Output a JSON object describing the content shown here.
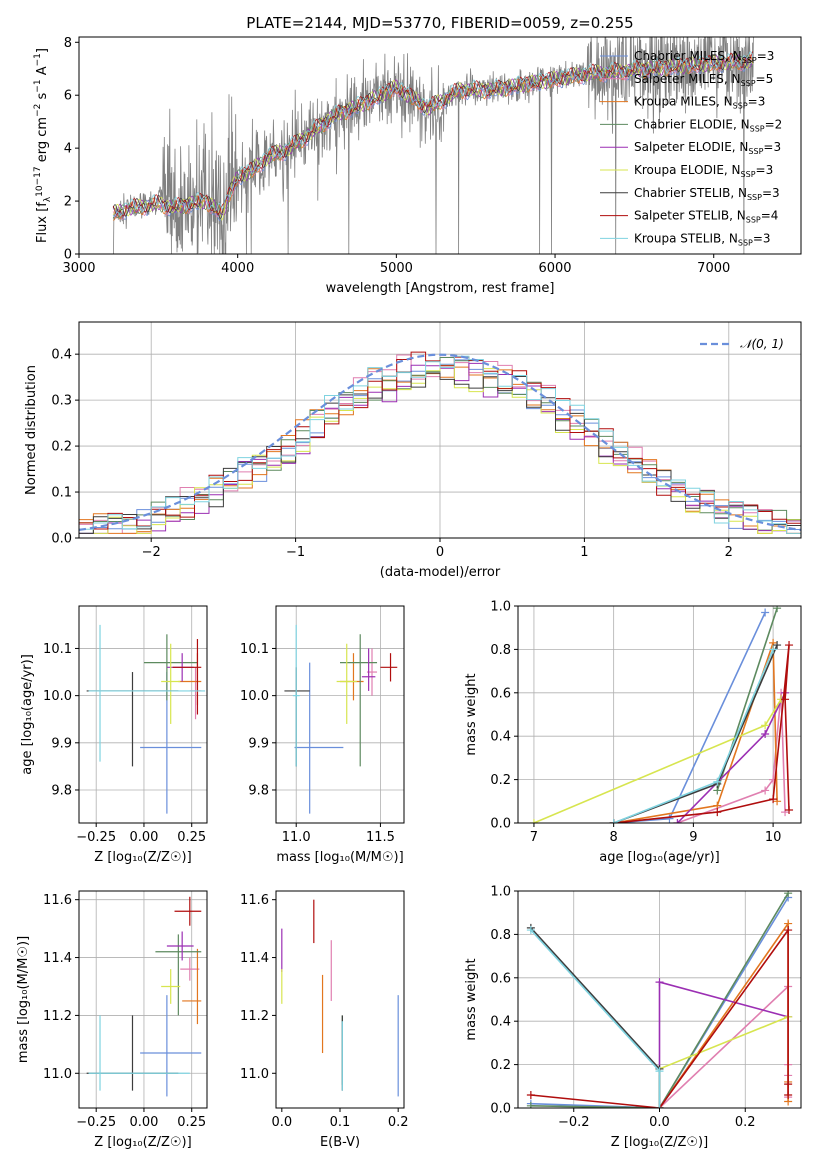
{
  "figure": {
    "title": "PLATE=2144, MJD=53770, FIBERID=0059, z=0.255"
  },
  "colors": {
    "obs": "#808080",
    "models": [
      "#6a8fdb",
      "#e07fb0",
      "#e2761f",
      "#5d8a5f",
      "#9b2fb3",
      "#d7e54f",
      "#3d3d3d",
      "#b00d0d",
      "#7fd3e0"
    ]
  },
  "chart_data": [
    {
      "type": "line",
      "id": "spectrum",
      "xlabel": "wavelength [Angstrom, rest frame]",
      "ylabel_parts": {
        "pre": "Flux [f",
        "sub": "λ",
        "mid": "10",
        "sup1": "−17",
        "post": " erg cm",
        "sup2": "−2",
        "post2": " s",
        "sup3": "−1",
        "post3": " A",
        "sup4": "−1",
        "end": "]"
      },
      "xlim": [
        3000,
        7550
      ],
      "ylim": [
        0,
        8.2
      ],
      "xticks": [
        3000,
        4000,
        5000,
        6000,
        7000
      ],
      "yticks": [
        0,
        2,
        4,
        6,
        8
      ],
      "grid": false,
      "legend_position": "top-right",
      "legend": [
        {
          "name": "Chabrier MILES, N",
          "sub": "SSP",
          "n": "=3"
        },
        {
          "name": "Salpeter MILES, N",
          "sub": "SSP",
          "n": "=5"
        },
        {
          "name": "Kroupa MILES, N",
          "sub": "SSP",
          "n": "=3"
        },
        {
          "name": "Chabrier ELODIE, N",
          "sub": "SSP",
          "n": "=2"
        },
        {
          "name": "Salpeter ELODIE, N",
          "sub": "SSP",
          "n": "=3"
        },
        {
          "name": "Kroupa ELODIE, N",
          "sub": "SSP",
          "n": "=3"
        },
        {
          "name": "Chabrier STELIB, N",
          "sub": "SSP",
          "n": "=3"
        },
        {
          "name": "Salpeter STELIB, N",
          "sub": "SSP",
          "n": "=4"
        },
        {
          "name": "Kroupa STELIB, N",
          "sub": "SSP",
          "n": "=3"
        }
      ],
      "observed_range": [
        3210,
        7250
      ],
      "model_continuum": {
        "x": [
          3210,
          3300,
          3400,
          3500,
          3600,
          3700,
          3800,
          3900,
          3950,
          4000,
          4100,
          4200,
          4300,
          4400,
          4600,
          4800,
          5000,
          5200,
          5400,
          5600,
          5800,
          6000,
          6200,
          6400,
          6600,
          6800,
          7000,
          7250
        ],
        "y": [
          1.5,
          1.7,
          1.8,
          1.9,
          1.75,
          1.9,
          2.0,
          1.5,
          2.3,
          2.9,
          3.2,
          3.7,
          3.9,
          4.3,
          5.2,
          5.7,
          6.3,
          5.5,
          6.2,
          6.2,
          6.4,
          6.6,
          6.8,
          6.9,
          7.0,
          7.1,
          7.2,
          7.3
        ]
      }
    },
    {
      "type": "bar",
      "id": "residuals",
      "xlabel": "(data-model)/error",
      "ylabel": "Normed distribution",
      "xlim": [
        -2.5,
        2.5
      ],
      "ylim": [
        0,
        0.47
      ],
      "xticks": [
        -2,
        -1,
        0,
        1,
        2
      ],
      "yticks": [
        0.0,
        0.1,
        0.2,
        0.3,
        0.4
      ],
      "grid": true,
      "legend_position": "top-right",
      "legend": [
        {
          "name": "𝒩(0, 1)"
        }
      ],
      "bin_width": 0.1
    },
    {
      "type": "scatter",
      "id": "z-age",
      "xlabel": "Z [log₁₀(Z/Z☉)]",
      "ylabel": "age  [log₁₀(age/yr)]",
      "xlim": [
        -0.34,
        0.33
      ],
      "ylim": [
        9.73,
        10.19
      ],
      "xticks": [
        -0.25,
        0.0,
        0.25
      ],
      "yticks": [
        9.8,
        9.9,
        10.0,
        10.1
      ],
      "grid": true,
      "points": [
        {
          "x": 0.12,
          "y": 9.89,
          "xerr": [
            0.14,
            0.18
          ],
          "yerr": [
            0.14,
            0.16
          ],
          "c": 0
        },
        {
          "x": 0.27,
          "y": 10.01,
          "xerr": [
            0.03,
            0.03
          ],
          "yerr": [
            0.06,
            0.05
          ],
          "c": 1
        },
        {
          "x": 0.28,
          "y": 10.03,
          "xerr": [
            0.1,
            0.02
          ],
          "yerr": [
            0.05,
            0.06
          ],
          "c": 2
        },
        {
          "x": 0.12,
          "y": 10.07,
          "xerr": [
            0.12,
            0.16
          ],
          "yerr": [
            0.08,
            0.06
          ],
          "c": 3
        },
        {
          "x": 0.2,
          "y": 10.06,
          "xerr": [
            0.08,
            0.06
          ],
          "yerr": [
            0.03,
            0.03
          ],
          "c": 4
        },
        {
          "x": 0.14,
          "y": 10.03,
          "xerr": [
            0.05,
            0.05
          ],
          "yerr": [
            0.09,
            0.08
          ],
          "c": 5
        },
        {
          "x": -0.06,
          "y": 10.01,
          "xerr": [
            0.24,
            0.24
          ],
          "yerr": [
            0.16,
            0.04
          ],
          "c": 6
        },
        {
          "x": 0.28,
          "y": 10.06,
          "xerr": [
            0.13,
            0.02
          ],
          "yerr": [
            0.1,
            0.06
          ],
          "c": 7
        },
        {
          "x": -0.23,
          "y": 10.01,
          "xerr": [
            0.06,
            0.55
          ],
          "yerr": [
            0.15,
            0.14
          ],
          "c": 8
        }
      ]
    },
    {
      "type": "scatter",
      "id": "mass-age",
      "xlabel": "mass [log₁₀(M/M☉)]",
      "ylabel": "",
      "xlim": [
        10.88,
        11.64
      ],
      "ylim": [
        9.73,
        10.19
      ],
      "xticks": [
        11.0,
        11.5
      ],
      "yticks": [
        9.8,
        9.9,
        10.0,
        10.1
      ],
      "grid": true,
      "points": [
        {
          "x": 11.08,
          "y": 9.89,
          "xerr": [
            0.09,
            0.2
          ],
          "yerr": [
            0.14,
            0.18
          ],
          "c": 0
        },
        {
          "x": 11.45,
          "y": 10.05,
          "xerr": [
            0.03,
            0.03
          ],
          "yerr": [
            0.05,
            0.05
          ],
          "c": 1
        },
        {
          "x": 11.34,
          "y": 10.03,
          "xerr": [
            0.08,
            0.06
          ],
          "yerr": [
            0.04,
            0.06
          ],
          "c": 2
        },
        {
          "x": 11.38,
          "y": 10.07,
          "xerr": [
            0.12,
            0.1
          ],
          "yerr": [
            0.22,
            0.06
          ],
          "c": 3
        },
        {
          "x": 11.43,
          "y": 10.04,
          "xerr": [
            0.04,
            0.04
          ],
          "yerr": [
            0.03,
            0.06
          ],
          "c": 4
        },
        {
          "x": 11.3,
          "y": 10.03,
          "xerr": [
            0.06,
            0.06
          ],
          "yerr": [
            0.09,
            0.08
          ],
          "c": 5
        },
        {
          "x": 11.0,
          "y": 10.01,
          "xerr": [
            0.07,
            0.08
          ],
          "yerr": [
            0.16,
            0.05
          ],
          "c": 6
        },
        {
          "x": 11.56,
          "y": 10.06,
          "xerr": [
            0.06,
            0.04
          ],
          "yerr": [
            0.03,
            0.03
          ],
          "c": 7
        },
        {
          "x": 11.0,
          "y": 10.0,
          "xerr": [
            0.02,
            0.02
          ],
          "yerr": [
            0.15,
            0.15
          ],
          "c": 8
        }
      ]
    },
    {
      "type": "line",
      "id": "age-weight",
      "xlabel": "age  [log₁₀(age/yr)]",
      "ylabel": "mass weight",
      "xlim": [
        6.8,
        10.35
      ],
      "ylim": [
        0,
        1.0
      ],
      "xticks": [
        7,
        8,
        9,
        10
      ],
      "yticks": [
        0.0,
        0.2,
        0.4,
        0.6,
        0.8,
        1.0
      ],
      "grid": true,
      "series": [
        {
          "c": 0,
          "x": [
            8.0,
            8.7,
            9.9
          ],
          "y": [
            0.0,
            0.02,
            0.97
          ]
        },
        {
          "c": 1,
          "x": [
            8.8,
            9.9,
            10.0,
            10.1,
            10.15
          ],
          "y": [
            0.0,
            0.15,
            0.2,
            0.6,
            0.05
          ]
        },
        {
          "c": 2,
          "x": [
            8.0,
            9.3,
            10.0,
            10.05
          ],
          "y": [
            0.0,
            0.08,
            0.83,
            0.1
          ]
        },
        {
          "c": 3,
          "x": [
            9.3,
            10.05
          ],
          "y": [
            0.15,
            0.99
          ]
        },
        {
          "c": 4,
          "x": [
            8.8,
            9.9,
            10.15
          ],
          "y": [
            0.0,
            0.41,
            0.6
          ]
        },
        {
          "c": 5,
          "x": [
            7.0,
            9.9,
            10.1
          ],
          "y": [
            0.0,
            0.45,
            0.57
          ]
        },
        {
          "c": 6,
          "x": [
            8.0,
            9.3,
            10.05
          ],
          "y": [
            0.0,
            0.18,
            0.82
          ]
        },
        {
          "c": 7,
          "x": [
            8.0,
            9.3,
            10.0,
            10.2,
            10.15,
            10.2
          ],
          "y": [
            0.0,
            0.05,
            0.11,
            0.82,
            0.57,
            0.06
          ]
        },
        {
          "c": 8,
          "x": [
            8.0,
            9.3,
            10.0
          ],
          "y": [
            0.0,
            0.19,
            0.8
          ]
        }
      ]
    },
    {
      "type": "scatter",
      "id": "z-mass",
      "xlabel": "Z [log₁₀(Z/Z☉)]",
      "ylabel": "mass [log₁₀(M/M☉)]",
      "xlim": [
        -0.34,
        0.33
      ],
      "ylim": [
        10.88,
        11.63
      ],
      "xticks": [
        -0.25,
        0.0,
        0.25
      ],
      "yticks": [
        11.0,
        11.2,
        11.4,
        11.6
      ],
      "grid": true,
      "points": [
        {
          "x": 0.12,
          "y": 11.07,
          "xerr": [
            0.14,
            0.18
          ],
          "yerr": [
            0.15,
            0.2
          ],
          "c": 0
        },
        {
          "x": 0.24,
          "y": 11.36,
          "xerr": [
            0.05,
            0.05
          ],
          "yerr": [
            0.04,
            0.04
          ],
          "c": 1
        },
        {
          "x": 0.28,
          "y": 11.25,
          "xerr": [
            0.08,
            0.02
          ],
          "yerr": [
            0.08,
            0.18
          ],
          "c": 2
        },
        {
          "x": 0.18,
          "y": 11.42,
          "xerr": [
            0.12,
            0.12
          ],
          "yerr": [
            0.22,
            0.06
          ],
          "c": 3
        },
        {
          "x": 0.2,
          "y": 11.44,
          "xerr": [
            0.08,
            0.06
          ],
          "yerr": [
            0.05,
            0.05
          ],
          "c": 4
        },
        {
          "x": 0.14,
          "y": 11.3,
          "xerr": [
            0.05,
            0.05
          ],
          "yerr": [
            0.06,
            0.06
          ],
          "c": 5
        },
        {
          "x": -0.06,
          "y": 11.0,
          "xerr": [
            0.24,
            0.24
          ],
          "yerr": [
            0.06,
            0.2
          ],
          "c": 6
        },
        {
          "x": 0.24,
          "y": 11.56,
          "xerr": [
            0.08,
            0.06
          ],
          "yerr": [
            0.05,
            0.05
          ],
          "c": 7
        },
        {
          "x": -0.23,
          "y": 11.0,
          "xerr": [
            0.06,
            0.47
          ],
          "yerr": [
            0.06,
            0.2
          ],
          "c": 8
        }
      ]
    },
    {
      "type": "scatter",
      "id": "ebv-mass",
      "xlabel": "E(B-V)",
      "ylabel": "",
      "xlim": [
        -0.01,
        0.21
      ],
      "ylim": [
        10.88,
        11.63
      ],
      "xticks": [
        0.0,
        0.1,
        0.2
      ],
      "yticks": [
        11.0,
        11.2,
        11.4,
        11.6
      ],
      "grid": false,
      "points": [
        {
          "x": 0.2,
          "y": 11.07,
          "yerr": [
            0.15,
            0.2
          ],
          "c": 0
        },
        {
          "x": 0.085,
          "y": 11.36,
          "yerr": [
            0.11,
            0.1
          ],
          "c": 1
        },
        {
          "x": 0.07,
          "y": 11.22,
          "yerr": [
            0.15,
            0.12
          ],
          "c": 2
        },
        {
          "x": 0.104,
          "y": 11.08,
          "yerr": [
            0.12,
            0.12
          ],
          "c": 3
        },
        {
          "x": 0.0,
          "y": 11.4,
          "yerr": [
            0.05,
            0.1
          ],
          "c": 4
        },
        {
          "x": 0.0,
          "y": 11.3,
          "yerr": [
            0.06,
            0.06
          ],
          "c": 5
        },
        {
          "x": 0.104,
          "y": 11.07,
          "yerr": [
            0.13,
            0.13
          ],
          "c": 6
        },
        {
          "x": 0.055,
          "y": 11.5,
          "yerr": [
            0.05,
            0.1
          ],
          "c": 7
        },
        {
          "x": 0.104,
          "y": 11.06,
          "yerr": [
            0.12,
            0.12
          ],
          "c": 8
        }
      ]
    },
    {
      "type": "line",
      "id": "z-weight",
      "xlabel": "Z [log₁₀(Z/Z☉)]",
      "ylabel": "mass weight",
      "xlim": [
        -0.33,
        0.33
      ],
      "ylim": [
        0,
        1.0
      ],
      "xticks": [
        -0.2,
        0.0,
        0.2
      ],
      "yticks": [
        0.0,
        0.2,
        0.4,
        0.6,
        0.8,
        1.0
      ],
      "grid": true,
      "series": [
        {
          "c": 0,
          "x": [
            -0.3,
            0.0,
            0.3
          ],
          "y": [
            0.02,
            0.0,
            0.97
          ]
        },
        {
          "c": 1,
          "x": [
            0.0,
            0.3,
            0.3,
            0.3,
            0.3
          ],
          "y": [
            0.0,
            0.56,
            0.2,
            0.15,
            0.05
          ]
        },
        {
          "c": 2,
          "x": [
            0.0,
            0.3,
            0.3,
            0.3
          ],
          "y": [
            0.0,
            0.85,
            0.12,
            0.03
          ]
        },
        {
          "c": 3,
          "x": [
            -0.3,
            0.0,
            0.3
          ],
          "y": [
            0.01,
            0.0,
            0.99
          ]
        },
        {
          "c": 4,
          "x": [
            0.0,
            0.0,
            0.3
          ],
          "y": [
            0.0,
            0.58,
            0.42
          ]
        },
        {
          "c": 5,
          "x": [
            0.0,
            0.0,
            0.3
          ],
          "y": [
            0.0,
            0.18,
            0.42
          ]
        },
        {
          "c": 6,
          "x": [
            -0.3,
            0.0,
            0.0
          ],
          "y": [
            0.83,
            0.18,
            0.0
          ]
        },
        {
          "c": 7,
          "x": [
            -0.3,
            0.0,
            0.3,
            0.3,
            0.3
          ],
          "y": [
            0.06,
            0.0,
            0.82,
            0.11,
            0.06
          ]
        },
        {
          "c": 8,
          "x": [
            -0.3,
            0.0,
            0.0
          ],
          "y": [
            0.82,
            0.17,
            0.0
          ]
        }
      ]
    }
  ]
}
